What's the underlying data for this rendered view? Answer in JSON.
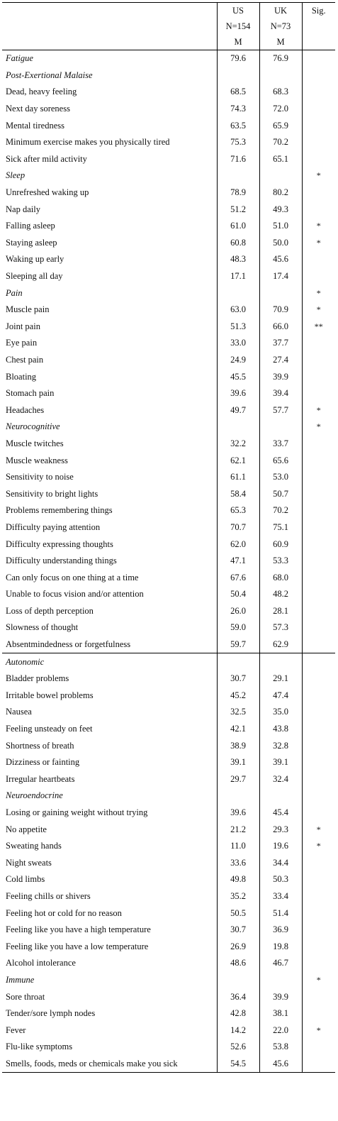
{
  "header": {
    "us": "US",
    "uk": "UK",
    "sig": "Sig.",
    "us_n": "N=154",
    "uk_n": "N=73",
    "us_m": "M",
    "uk_m": "M"
  },
  "rows": [
    {
      "label": "Fatigue",
      "us": "79.6",
      "uk": "76.9",
      "sig": "",
      "section": true
    },
    {
      "label": "Post-Exertional Malaise",
      "us": "",
      "uk": "",
      "sig": "",
      "section": true
    },
    {
      "label": "Dead, heavy feeling",
      "us": "68.5",
      "uk": "68.3",
      "sig": ""
    },
    {
      "label": "Next day soreness",
      "us": "74.3",
      "uk": "72.0",
      "sig": ""
    },
    {
      "label": "Mental tiredness",
      "us": "63.5",
      "uk": "65.9",
      "sig": ""
    },
    {
      "label": "Minimum exercise makes you physically tired",
      "us": "75.3",
      "uk": "70.2",
      "sig": ""
    },
    {
      "label": "Sick after mild activity",
      "us": "71.6",
      "uk": "65.1",
      "sig": ""
    },
    {
      "label": "Sleep",
      "us": "",
      "uk": "",
      "sig": "*",
      "section": true
    },
    {
      "label": "Unrefreshed waking up",
      "us": "78.9",
      "uk": "80.2",
      "sig": ""
    },
    {
      "label": "Nap daily",
      "us": "51.2",
      "uk": "49.3",
      "sig": ""
    },
    {
      "label": "Falling asleep",
      "us": "61.0",
      "uk": "51.0",
      "sig": "*"
    },
    {
      "label": "Staying asleep",
      "us": "60.8",
      "uk": "50.0",
      "sig": "*"
    },
    {
      "label": "Waking up early",
      "us": "48.3",
      "uk": "45.6",
      "sig": ""
    },
    {
      "label": "Sleeping all day",
      "us": "17.1",
      "uk": "17.4",
      "sig": ""
    },
    {
      "label": "Pain",
      "us": "",
      "uk": "",
      "sig": "*",
      "section": true
    },
    {
      "label": "Muscle pain",
      "us": "63.0",
      "uk": "70.9",
      "sig": "*"
    },
    {
      "label": "Joint pain",
      "us": "51.3",
      "uk": "66.0",
      "sig": "**"
    },
    {
      "label": "Eye pain",
      "us": "33.0",
      "uk": "37.7",
      "sig": ""
    },
    {
      "label": "Chest pain",
      "us": "24.9",
      "uk": "27.4",
      "sig": ""
    },
    {
      "label": "Bloating",
      "us": "45.5",
      "uk": "39.9",
      "sig": ""
    },
    {
      "label": "Stomach pain",
      "us": "39.6",
      "uk": "39.4",
      "sig": ""
    },
    {
      "label": "Headaches",
      "us": "49.7",
      "uk": "57.7",
      "sig": "*"
    },
    {
      "label": "Neurocognitive",
      "us": "",
      "uk": "",
      "sig": "*",
      "section": true
    },
    {
      "label": "Muscle twitches",
      "us": "32.2",
      "uk": "33.7",
      "sig": ""
    },
    {
      "label": "Muscle weakness",
      "us": "62.1",
      "uk": "65.6",
      "sig": ""
    },
    {
      "label": "Sensitivity to noise",
      "us": "61.1",
      "uk": "53.0",
      "sig": ""
    },
    {
      "label": "Sensitivity to bright lights",
      "us": "58.4",
      "uk": "50.7",
      "sig": ""
    },
    {
      "label": "Problems remembering things",
      "us": "65.3",
      "uk": "70.2",
      "sig": ""
    },
    {
      "label": "Difficulty paying attention",
      "us": "70.7",
      "uk": "75.1",
      "sig": ""
    },
    {
      "label": "Difficulty expressing thoughts",
      "us": "62.0",
      "uk": "60.9",
      "sig": ""
    },
    {
      "label": "Difficulty understanding things",
      "us": "47.1",
      "uk": "53.3",
      "sig": ""
    },
    {
      "label": "Can only focus on one thing at a time",
      "us": "67.6",
      "uk": "68.0",
      "sig": ""
    },
    {
      "label": "Unable to focus vision and/or attention",
      "us": "50.4",
      "uk": "48.2",
      "sig": ""
    },
    {
      "label": "Loss of depth perception",
      "us": "26.0",
      "uk": "28.1",
      "sig": ""
    },
    {
      "label": "Slowness of thought",
      "us": "59.0",
      "uk": "57.3",
      "sig": ""
    },
    {
      "label": "Absentmindedness or forgetfulness",
      "us": "59.7",
      "uk": "62.9",
      "sig": ""
    },
    {
      "label": "Autonomic",
      "us": "",
      "uk": "",
      "sig": "",
      "section": true,
      "block_start": true
    },
    {
      "label": "Bladder problems",
      "us": "30.7",
      "uk": "29.1",
      "sig": ""
    },
    {
      "label": "Irritable bowel problems",
      "us": "45.2",
      "uk": "47.4",
      "sig": ""
    },
    {
      "label": "Nausea",
      "us": "32.5",
      "uk": "35.0",
      "sig": ""
    },
    {
      "label": "Feeling unsteady on feet",
      "us": "42.1",
      "uk": "43.8",
      "sig": ""
    },
    {
      "label": "Shortness of breath",
      "us": "38.9",
      "uk": "32.8",
      "sig": ""
    },
    {
      "label": "Dizziness or fainting",
      "us": "39.1",
      "uk": "39.1",
      "sig": ""
    },
    {
      "label": "Irregular heartbeats",
      "us": "29.7",
      "uk": "32.4",
      "sig": ""
    },
    {
      "label": "Neuroendocrine",
      "us": "",
      "uk": "",
      "sig": "",
      "section": true
    },
    {
      "label": "Losing or gaining weight without trying",
      "us": "39.6",
      "uk": "45.4",
      "sig": ""
    },
    {
      "label": "No appetite",
      "us": "21.2",
      "uk": "29.3",
      "sig": "*"
    },
    {
      "label": "Sweating hands",
      "us": "11.0",
      "uk": "19.6",
      "sig": "*"
    },
    {
      "label": "Night sweats",
      "us": "33.6",
      "uk": "34.4",
      "sig": ""
    },
    {
      "label": "Cold limbs",
      "us": "49.8",
      "uk": "50.3",
      "sig": ""
    },
    {
      "label": "Feeling chills or shivers",
      "us": "35.2",
      "uk": "33.4",
      "sig": ""
    },
    {
      "label": "Feeling hot or cold for no reason",
      "us": "50.5",
      "uk": "51.4",
      "sig": ""
    },
    {
      "label": "Feeling like you have a high temperature",
      "us": "30.7",
      "uk": "36.9",
      "sig": ""
    },
    {
      "label": "Feeling like you have a low temperature",
      "us": "26.9",
      "uk": "19.8",
      "sig": ""
    },
    {
      "label": "Alcohol intolerance",
      "us": "48.6",
      "uk": "46.7",
      "sig": ""
    },
    {
      "label": "Immune",
      "us": "",
      "uk": "",
      "sig": "*",
      "section": true
    },
    {
      "label": "Sore throat",
      "us": "36.4",
      "uk": "39.9",
      "sig": ""
    },
    {
      "label": "Tender/sore lymph nodes",
      "us": "42.8",
      "uk": "38.1",
      "sig": ""
    },
    {
      "label": "Fever",
      "us": "14.2",
      "uk": "22.0",
      "sig": "*"
    },
    {
      "label": "Flu-like symptoms",
      "us": "52.6",
      "uk": "53.8",
      "sig": ""
    },
    {
      "label": "Smells, foods, meds or chemicals make you sick",
      "us": "54.5",
      "uk": "45.6",
      "sig": ""
    }
  ]
}
